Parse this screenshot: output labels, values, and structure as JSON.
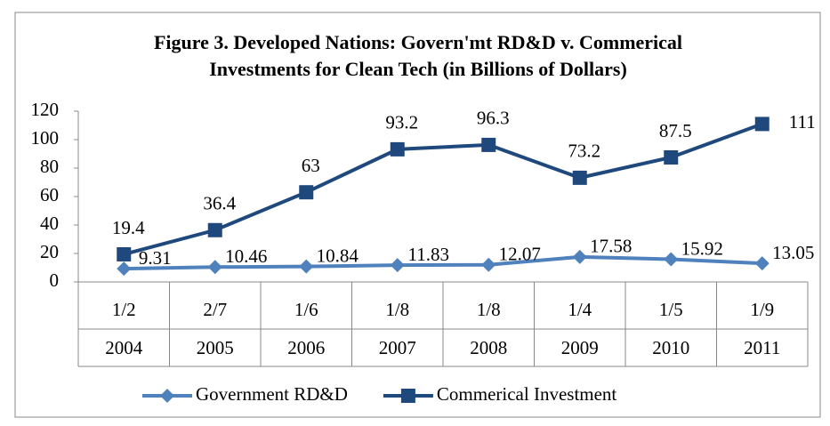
{
  "chart_data": {
    "type": "line",
    "title": [
      "Figure 3. Developed Nations: Govern'mt RD&D v. Commerical",
      "Investments for Clean Tech (in Billions of Dollars)"
    ],
    "categories": [
      "1/2",
      "2/7",
      "1/6",
      "1/8",
      "1/8",
      "1/4",
      "1/5",
      "1/9"
    ],
    "category_groups": [
      "2004",
      "2005",
      "2006",
      "2007",
      "2008",
      "2009",
      "2010",
      "2011"
    ],
    "series": [
      {
        "name": "Government RD&D",
        "color": "#4f81bd",
        "marker": "diamond",
        "values": [
          9.31,
          10.46,
          10.84,
          11.83,
          12.07,
          17.58,
          15.92,
          13.05
        ]
      },
      {
        "name": "Commerical Investment",
        "color": "#1f497d",
        "marker": "square",
        "values": [
          19.4,
          36.4,
          63,
          93.2,
          96.3,
          73.2,
          87.5,
          111
        ]
      }
    ],
    "ylim": [
      0,
      120
    ],
    "yticks": [
      0,
      20,
      40,
      60,
      80,
      100,
      120
    ],
    "grid": false,
    "legend": "bottom"
  }
}
